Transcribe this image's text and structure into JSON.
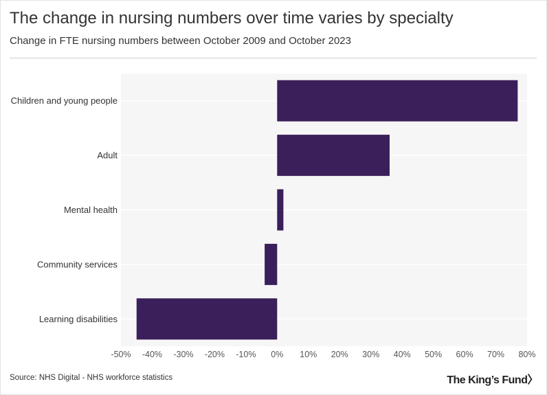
{
  "header": {
    "title": "The change in nursing numbers over time varies by specialty",
    "subtitle": "Change in FTE nursing numbers between October 2009 and October 2023"
  },
  "footer": {
    "source": "Source: NHS Digital - NHS workforce statistics",
    "logo_text": "The King’s Fund",
    "logo_chevron": "〉"
  },
  "colors": {
    "bar": "#3b1f5a",
    "plot_background": "#f6f6f6",
    "gridline": "#ffffff"
  },
  "chart_data": {
    "type": "bar",
    "orientation": "horizontal",
    "title": "The change in nursing numbers over time varies by specialty",
    "subtitle": "Change in FTE nursing numbers between October 2009 and October 2023",
    "categories": [
      "Children and young people",
      "Adult",
      "Mental health",
      "Community services",
      "Learning disabilities"
    ],
    "values": [
      77,
      36,
      2,
      -4,
      -45
    ],
    "value_unit": "%",
    "xlim": [
      -50,
      80
    ],
    "xticks": [
      -50,
      -40,
      -30,
      -20,
      -10,
      0,
      10,
      20,
      30,
      40,
      50,
      60,
      70,
      80
    ],
    "xtick_labels": [
      "-50%",
      "-40%",
      "-30%",
      "-20%",
      "-10%",
      "0%",
      "10%",
      "20%",
      "30%",
      "40%",
      "50%",
      "60%",
      "70%",
      "80%"
    ],
    "xlabel": "",
    "ylabel": "",
    "grid": true,
    "legend": "none"
  }
}
